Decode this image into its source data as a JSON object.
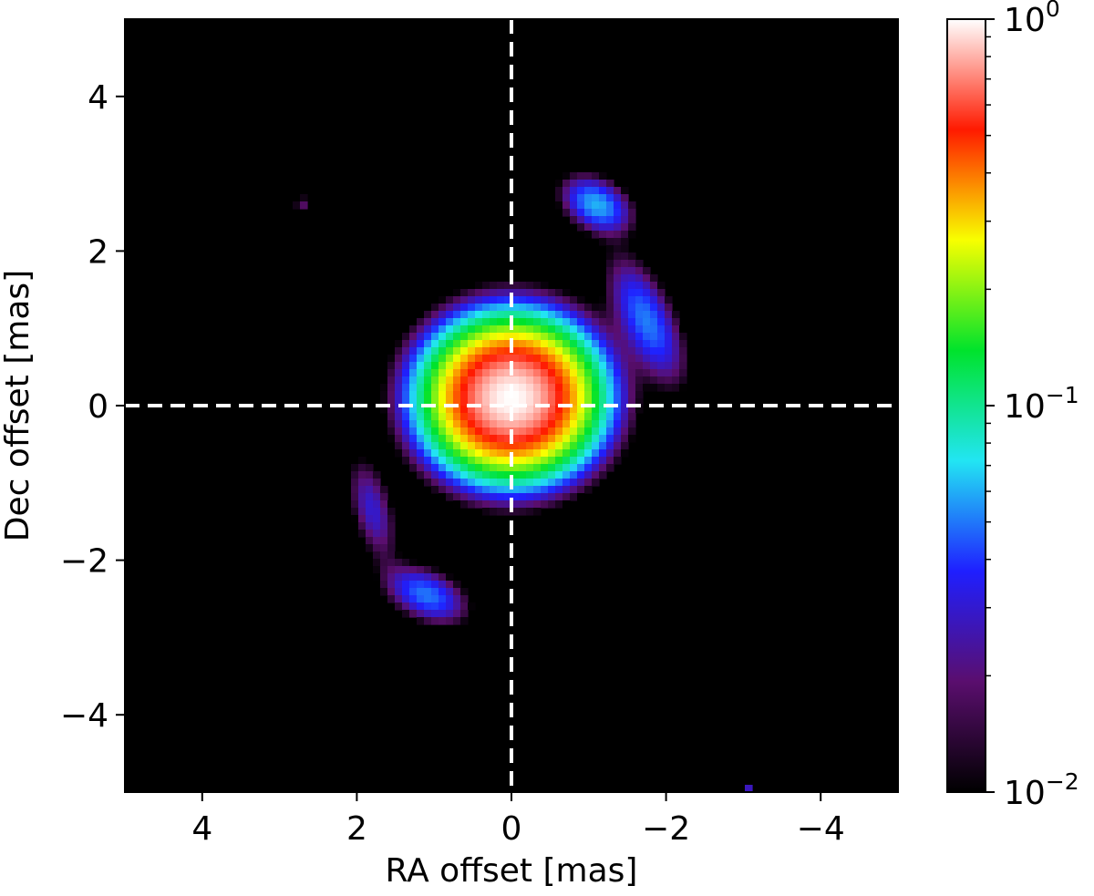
{
  "chart_data": {
    "type": "heatmap",
    "title": "",
    "xlabel": "RA offset [mas]",
    "ylabel": "Dec offset [mas]",
    "xlim": [
      5,
      -5
    ],
    "ylim": [
      -5,
      5
    ],
    "x_ticks": [
      {
        "value": 4,
        "label": "4"
      },
      {
        "value": 2,
        "label": "2"
      },
      {
        "value": 0,
        "label": "0"
      },
      {
        "value": -2,
        "label": "−2"
      },
      {
        "value": -4,
        "label": "−4"
      }
    ],
    "y_ticks": [
      {
        "value": 4,
        "label": "4"
      },
      {
        "value": 2,
        "label": "2"
      },
      {
        "value": 0,
        "label": "0"
      },
      {
        "value": -2,
        "label": "−2"
      },
      {
        "value": -4,
        "label": "−4"
      }
    ],
    "crosshair": {
      "x": 0,
      "y": 0,
      "style": "dashed",
      "color": "#ffffff"
    },
    "colorbar": {
      "scale": "log",
      "min": 0.01,
      "max": 1,
      "ticks": [
        {
          "value": 1,
          "base": "10",
          "exp": "0"
        },
        {
          "value": 0.1,
          "base": "10",
          "exp": "−1"
        },
        {
          "value": 0.01,
          "base": "10",
          "exp": "−2"
        }
      ],
      "colors": [
        "#000000",
        "#5a0e6e",
        "#1f1fff",
        "#22e5f3",
        "#00e32c",
        "#f8ff00",
        "#ff1a00",
        "#ffffff"
      ]
    },
    "sources": [
      {
        "name": "central-peak",
        "x": 0,
        "y": 0.1,
        "peak": 1.0,
        "sx": 0.55,
        "sy": 0.5,
        "theta": 0
      },
      {
        "name": "upper-right-blob",
        "x": -1.1,
        "y": 2.6,
        "peak": 0.06,
        "sx": 0.3,
        "sy": 0.2,
        "theta": 30
      },
      {
        "name": "right-arm",
        "x": -1.75,
        "y": 1.1,
        "peak": 0.05,
        "sx": 0.22,
        "sy": 0.55,
        "theta": -25
      },
      {
        "name": "left-arm",
        "x": 1.8,
        "y": -1.35,
        "peak": 0.03,
        "sx": 0.17,
        "sy": 0.45,
        "theta": -15
      },
      {
        "name": "lower-left-blob",
        "x": 1.1,
        "y": -2.45,
        "peak": 0.05,
        "sx": 0.35,
        "sy": 0.2,
        "theta": 25
      },
      {
        "name": "upper-left-speck",
        "x": 2.7,
        "y": 2.6,
        "peak": 0.018,
        "sx": 0.08,
        "sy": 0.1,
        "theta": 40
      },
      {
        "name": "lower-right-speck",
        "x": -3.05,
        "y": -4.95,
        "peak": 0.03,
        "sx": 0.04,
        "sy": 0.04,
        "theta": 0
      }
    ]
  }
}
